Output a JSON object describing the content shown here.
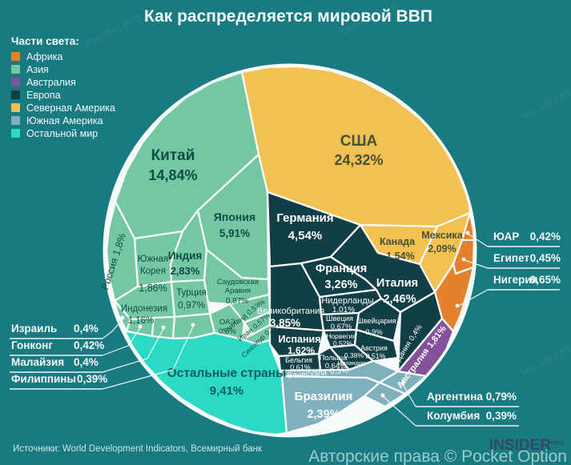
{
  "title": "Как распределяется мировой ВВП",
  "background_watermark": "Insider.pro",
  "legend": {
    "heading": "Части света:",
    "items": [
      {
        "id": "africa",
        "label": "Африка",
        "color": "#E5802B"
      },
      {
        "id": "asia",
        "label": "Азия",
        "color": "#73C7A2"
      },
      {
        "id": "australia",
        "label": "Австралия",
        "color": "#84519B"
      },
      {
        "id": "europe",
        "label": "Европа",
        "color": "#123E46"
      },
      {
        "id": "north_america",
        "label": "Северная Америка",
        "color": "#F2C14F"
      },
      {
        "id": "south_america",
        "label": "Южная Америка",
        "color": "#7FB0BE"
      },
      {
        "id": "rest_of_world",
        "label": "Остальной мир",
        "color": "#2BD9C5"
      }
    ]
  },
  "chart_data": {
    "type": "voronoi-circular-treemap",
    "title": "Как распределяется мировой ВВП",
    "unit": "% мирового ВВП",
    "legend_position": "top-left",
    "countries": {
      "usa": {
        "name": "США",
        "share": "24,32%",
        "value": 24.32,
        "continent": "north_america"
      },
      "china": {
        "name": "Китай",
        "share": "14,84%",
        "value": 14.84,
        "continent": "asia"
      },
      "rest": {
        "name": "Остальные страны",
        "share": "9,41%",
        "value": 9.41,
        "continent": "rest_of_world"
      },
      "japan": {
        "name": "Япония",
        "share": "5,91%",
        "value": 5.91,
        "continent": "asia"
      },
      "germany": {
        "name": "Германия",
        "share": "4,54%",
        "value": 4.54,
        "continent": "europe"
      },
      "uk": {
        "name": "Великобритания",
        "share": "3,85%",
        "value": 3.85,
        "continent": "europe"
      },
      "france": {
        "name": "Франция",
        "share": "3,26%",
        "value": 3.26,
        "continent": "europe"
      },
      "india": {
        "name": "Индия",
        "share": "2,83%",
        "value": 2.83,
        "continent": "asia"
      },
      "italy": {
        "name": "Италия",
        "share": "2,46%",
        "value": 2.46,
        "continent": "europe"
      },
      "brazil": {
        "name": "Бразилия",
        "share": "2,39%",
        "value": 2.39,
        "continent": "south_america"
      },
      "mexico": {
        "name": "Мексика",
        "share": "2,09%",
        "value": 2.09,
        "continent": "north_america"
      },
      "south_korea": {
        "name": "Южная Корея",
        "share": "1,86%",
        "value": 1.86,
        "continent": "asia"
      },
      "australia": {
        "name": "Австралия",
        "share": "1,81%",
        "value": 1.81,
        "continent": "australia"
      },
      "russia": {
        "name": "Россия",
        "share": "1,8%",
        "value": 1.8,
        "continent": "asia"
      },
      "spain": {
        "name": "Испания",
        "share": "1,62%",
        "value": 1.62,
        "continent": "europe"
      },
      "canada": {
        "name": "Канада",
        "share": "1,54%",
        "value": 1.54,
        "continent": "north_america"
      },
      "indonesia": {
        "name": "Индонезия",
        "share": "1,16%",
        "value": 1.16,
        "continent": "asia"
      },
      "netherlands": {
        "name": "Нидерланды",
        "share": "1,01%",
        "value": 1.01,
        "continent": "europe"
      },
      "turkey": {
        "name": "Турция",
        "share": "0,97%",
        "value": 0.97,
        "continent": "asia"
      },
      "switzerland": {
        "name": "Швейцария",
        "share": "0,9%",
        "value": 0.9,
        "continent": "europe"
      },
      "saudi_arabia": {
        "name": "Саудовская Аравия",
        "share": "0,87%",
        "value": 0.87,
        "continent": "asia"
      },
      "argentina": {
        "name": "Аргентина",
        "share": "0,79%",
        "value": 0.79,
        "continent": "south_america"
      },
      "sweden": {
        "name": "Швеция",
        "share": "0,67%",
        "value": 0.67,
        "continent": "europe"
      },
      "nigeria": {
        "name": "Нигерия",
        "share": "0,65%",
        "value": 0.65,
        "continent": "africa"
      },
      "poland": {
        "name": "Польша",
        "share": "0,64%",
        "value": 0.64,
        "continent": "europe"
      },
      "belgium": {
        "name": "Бельгия",
        "share": "0,61%",
        "value": 0.61,
        "continent": "europe"
      },
      "iran": {
        "name": "Иран",
        "share": "0,57%",
        "value": 0.57,
        "continent": "asia"
      },
      "thailand": {
        "name": "Таиланд",
        "share": "0,53%",
        "value": 0.53,
        "continent": "asia"
      },
      "norway": {
        "name": "Норвегия",
        "share": "0,52%",
        "value": 0.52,
        "continent": "europe"
      },
      "austria": {
        "name": "Австрия",
        "share": "0,51%",
        "value": 0.51,
        "continent": "europe"
      },
      "uae": {
        "name": "ОАЭ",
        "share": "0,5%",
        "value": 0.5,
        "continent": "asia"
      },
      "venezuela": {
        "name": "Венесуэла",
        "share": "0,5%",
        "value": 0.5,
        "continent": "south_america"
      },
      "egypt": {
        "name": "Египет",
        "share": "0,45%",
        "value": 0.45,
        "continent": "africa"
      },
      "south_africa": {
        "name": "ЮАР",
        "share": "0,42%",
        "value": 0.42,
        "continent": "africa"
      },
      "hong_kong": {
        "name": "Гонконг",
        "share": "0,42%",
        "value": 0.42,
        "continent": "asia"
      },
      "denmark": {
        "name": "Дания",
        "share": "0,4%",
        "value": 0.4,
        "continent": "europe"
      },
      "israel": {
        "name": "Израиль",
        "share": "0,4%",
        "value": 0.4,
        "continent": "asia"
      },
      "malaysia": {
        "name": "Малайзия",
        "share": "0,4%",
        "value": 0.4,
        "continent": "asia"
      },
      "philippines": {
        "name": "Филиппины",
        "share": "0,39%",
        "value": 0.39,
        "continent": "asia"
      },
      "singapore": {
        "name": "Сингапур",
        "share": "0,39%",
        "value": 0.39,
        "continent": "asia"
      },
      "colombia": {
        "name": "Колумбия",
        "share": "0,39%",
        "value": 0.39,
        "continent": "south_america"
      },
      "ireland": {
        "name": "Ирландия",
        "share": "0,38%",
        "value": 0.38,
        "continent": "europe"
      }
    }
  },
  "footer": {
    "sources": "Источники: World Development Indicators, Всемирный банк",
    "copyright": "Авторские права © Pocket Option",
    "logo_text": "INSIDER",
    "logo_suffix": "PRO"
  }
}
